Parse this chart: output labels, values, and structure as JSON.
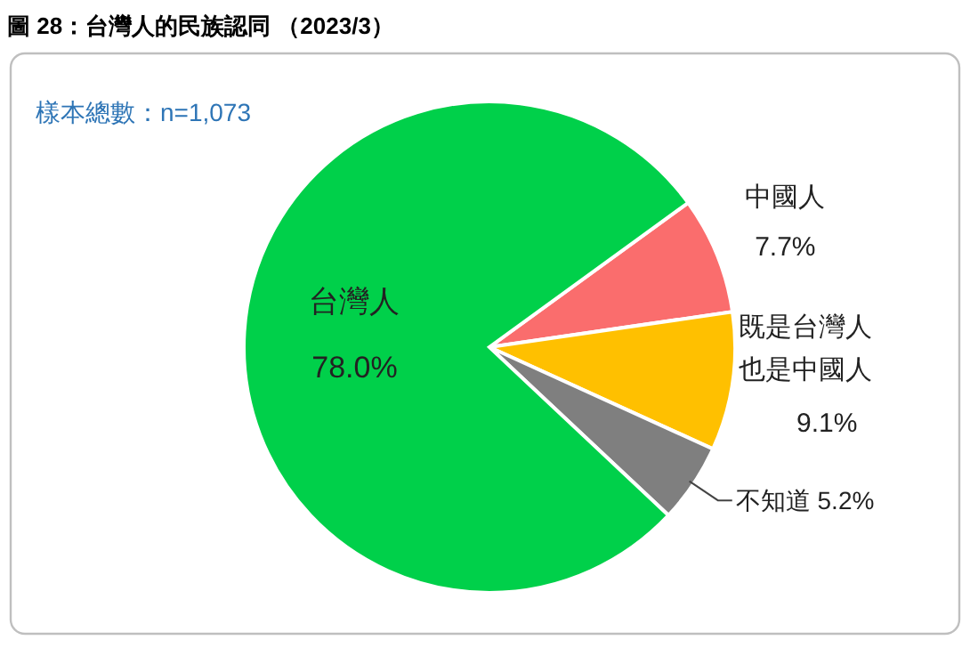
{
  "chart_data": {
    "type": "pie",
    "title": "圖 28：台灣人的民族認同 （2023/3）",
    "annotations": [
      "樣本總數：n=1,073"
    ],
    "categories": [
      "中國人",
      "既是台灣人也是中國人",
      "不知道",
      "台灣人"
    ],
    "values": [
      7.7,
      9.1,
      5.2,
      78.0
    ],
    "colors": [
      "#fa6d6d",
      "#ffc000",
      "#7f7f7f",
      "#00d04a"
    ],
    "value_labels": [
      "7.7%",
      "9.1%",
      "5.2%",
      "78.0%"
    ]
  }
}
